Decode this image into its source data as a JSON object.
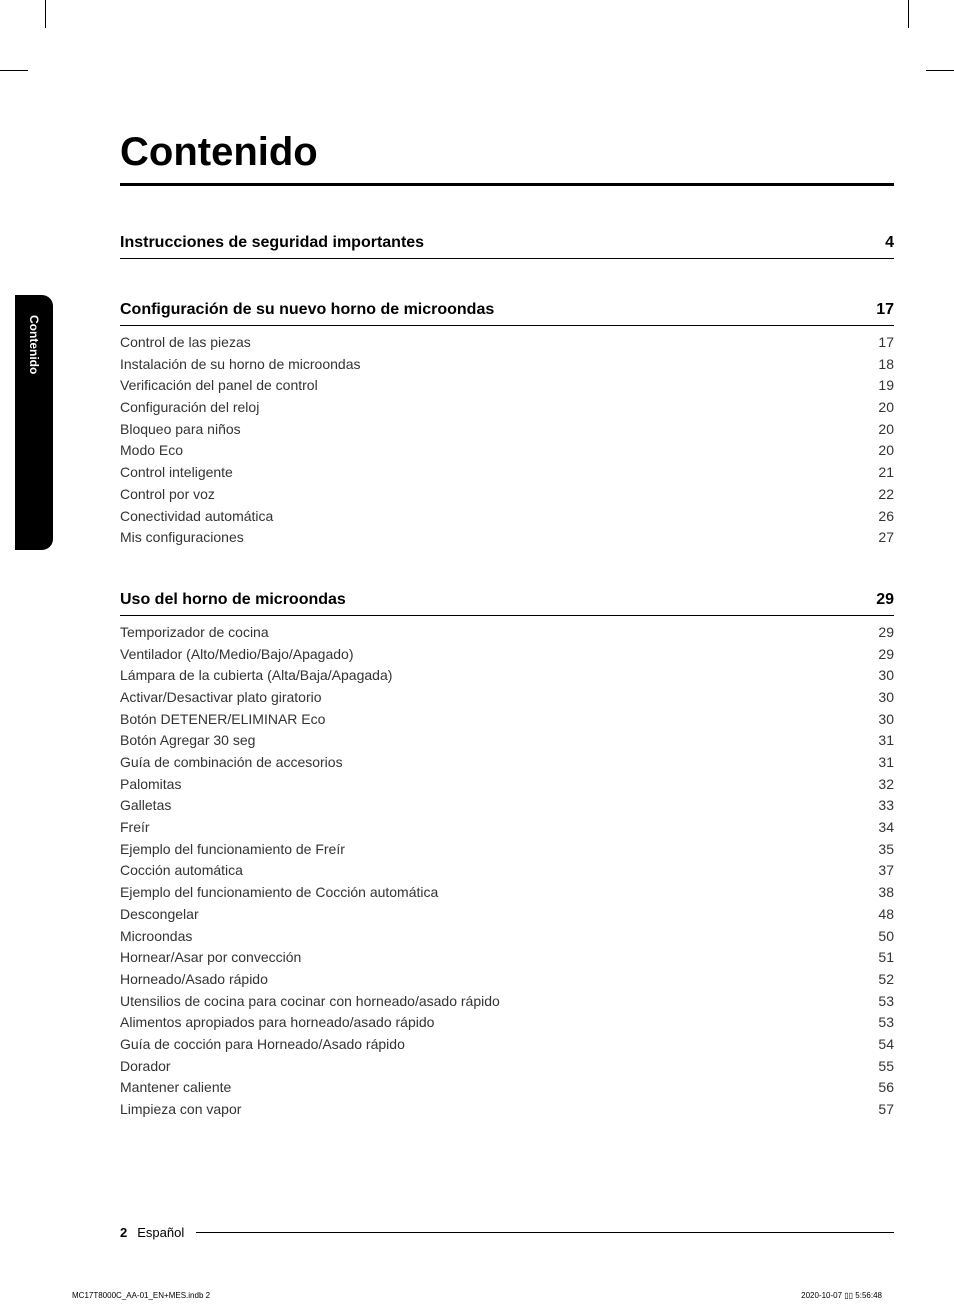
{
  "title": "Contenido",
  "side_tab": "Contenido",
  "sections": [
    {
      "id": "sec-seguridad",
      "heading": "Instrucciones de seguridad importantes",
      "page": "4",
      "entries": []
    },
    {
      "id": "sec-config",
      "heading": "Configuración de su nuevo horno de microondas",
      "page": "17",
      "entries": [
        {
          "label": "Control de las piezas",
          "page": "17"
        },
        {
          "label": "Instalación de su horno de microondas",
          "page": "18"
        },
        {
          "label": "Verificación del panel de control",
          "page": "19"
        },
        {
          "label": "Configuración del reloj",
          "page": "20"
        },
        {
          "label": "Bloqueo para niños",
          "page": "20"
        },
        {
          "label": "Modo Eco",
          "page": "20"
        },
        {
          "label": "Control inteligente",
          "page": "21"
        },
        {
          "label": "Control por voz",
          "page": "22"
        },
        {
          "label": "Conectividad automática",
          "page": "26"
        },
        {
          "label": "Mis configuraciones",
          "page": "27"
        }
      ]
    },
    {
      "id": "sec-uso",
      "heading": "Uso del horno de microondas",
      "page": "29",
      "entries": [
        {
          "label": "Temporizador de cocina",
          "page": "29"
        },
        {
          "label": "Ventilador (Alto/Medio/Bajo/Apagado)",
          "page": "29"
        },
        {
          "label": "Lámpara de la cubierta (Alta/Baja/Apagada)",
          "page": "30"
        },
        {
          "label": "Activar/Desactivar plato giratorio",
          "page": "30"
        },
        {
          "label": "Botón DETENER/ELIMINAR Eco",
          "page": "30"
        },
        {
          "label": "Botón Agregar 30 seg",
          "page": "31"
        },
        {
          "label": "Guía de combinación de accesorios",
          "page": "31"
        },
        {
          "label": "Palomitas",
          "page": "32"
        },
        {
          "label": "Galletas",
          "page": "33"
        },
        {
          "label": "Freír",
          "page": "34"
        },
        {
          "label": "Ejemplo del funcionamiento de Freír",
          "page": "35"
        },
        {
          "label": "Cocción automática",
          "page": "37"
        },
        {
          "label": "Ejemplo del funcionamiento de Cocción automática",
          "page": "38"
        },
        {
          "label": "Descongelar",
          "page": "48"
        },
        {
          "label": "Microondas",
          "page": "50"
        },
        {
          "label": "Hornear/Asar por convección",
          "page": "51"
        },
        {
          "label": "Horneado/Asado rápido",
          "page": "52"
        },
        {
          "label": "Utensilios de cocina para cocinar con horneado/asado rápido",
          "page": "53"
        },
        {
          "label": "Alimentos apropiados para horneado/asado rápido",
          "page": "53"
        },
        {
          "label": "Guía de cocción para Horneado/Asado rápido",
          "page": "54"
        },
        {
          "label": "Dorador",
          "page": "55"
        },
        {
          "label": "Mantener caliente",
          "page": "56"
        },
        {
          "label": "Limpieza con vapor",
          "page": "57"
        }
      ]
    }
  ],
  "footer": {
    "page_number": "2",
    "language": "Español"
  },
  "print_footer": {
    "file_ref": "MC17T8000C_AA-01_EN+MES.indb   2",
    "timestamp": "2020-10-07   ▯▯ 5:56:48"
  }
}
